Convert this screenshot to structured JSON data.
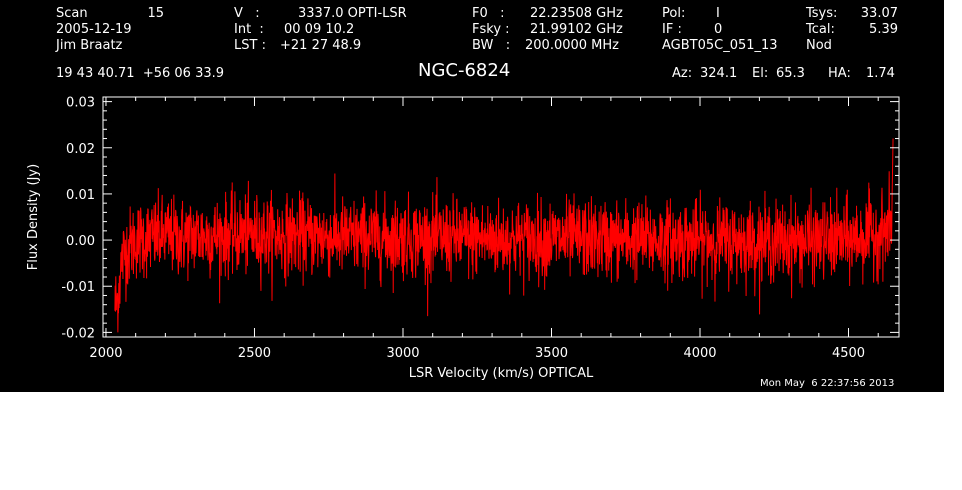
{
  "header": {
    "scan_label": "Scan",
    "scan_value": "15",
    "date": "2005-12-19",
    "observer": "Jim Braatz",
    "v_label": "V   :",
    "v_value": "3337.0 OPTI-LSR",
    "int_label": "Int  :",
    "int_value": "00 09 10.2",
    "lst_label": "LST : ",
    "lst_value": "+21 27 48.9",
    "f0_label": "F0   :",
    "f0_value": "22.23508 GHz",
    "fsky_label": "Fsky :",
    "fsky_value": "21.99102 GHz",
    "bw_label": "BW   :",
    "bw_value": "200.0000 MHz",
    "pol_label": "Pol:",
    "pol_value": "I",
    "if_label": "IF :",
    "if_value": "0",
    "project": "AGBT05C_051_13",
    "tsys_label": "Tsys:",
    "tsys_value": "33.07",
    "tcal_label": "Tcal:",
    "tcal_value": "5.39",
    "proc": "Nod",
    "coords": "19 43 40.71  +56 06 33.9",
    "az_label": "Az:",
    "az_value": "324.1",
    "el_label": "El:",
    "el_value": "65.3",
    "ha_label": "HA:",
    "ha_value": "1.74"
  },
  "object_name": "NGC-6824",
  "timestamp": "Mon May  6 22:37:56 2013",
  "colors": {
    "background": "#000000",
    "axes": "#ffffff",
    "trace": "#ff0000"
  },
  "chart_data": {
    "type": "line",
    "title": "NGC-6824",
    "xlabel": "LSR Velocity (km/s) OPTICAL",
    "ylabel": "Flux Density (Jy)",
    "xlim": [
      1990,
      4670
    ],
    "ylim": [
      -0.021,
      0.031
    ],
    "xticks": [
      2000,
      2500,
      3000,
      3500,
      4000,
      4500
    ],
    "xtick_labels": [
      "2000",
      "2500",
      "3000",
      "3500",
      "4000",
      "4500"
    ],
    "yticks": [
      -0.02,
      -0.01,
      0.0,
      0.01,
      0.02,
      0.03
    ],
    "ytick_labels": [
      "-0.02",
      "-0.01",
      "0.00",
      "0.01",
      "0.02",
      "0.03"
    ],
    "series": [
      {
        "color": "#ff0000",
        "x": [
          2030,
          2040,
          2045,
          2055,
          2070,
          2100,
          2150,
          2200,
          2250,
          2300,
          2350,
          2400,
          2500,
          2600,
          2700,
          2800,
          2900,
          3000,
          3100,
          3200,
          3300,
          3400,
          3500,
          3600,
          3700,
          3800,
          3900,
          4000,
          4100,
          4200,
          4300,
          4400,
          4500,
          4550,
          4600,
          4630,
          4640,
          4645,
          4650
        ],
        "y": [
          -0.014,
          -0.013,
          -0.009,
          -0.004,
          -0.002,
          0.0,
          0.0005,
          0.001,
          0.0005,
          0.001,
          0.0008,
          0.001,
          0.0012,
          0.001,
          0.0008,
          0.0006,
          0.0005,
          0.0005,
          0.0004,
          0.0003,
          0.0002,
          0.0002,
          0.0002,
          0.0002,
          0.0001,
          0.0001,
          0.0,
          -0.0001,
          -0.0002,
          -0.0003,
          -0.0003,
          -0.0002,
          0.0,
          0.0008,
          0.0015,
          0.002,
          0.003,
          0.005,
          0.01
        ],
        "noise_rms_jy": 0.0042,
        "peak_jy": 0.022
      }
    ],
    "grid": false,
    "legend": "none"
  }
}
